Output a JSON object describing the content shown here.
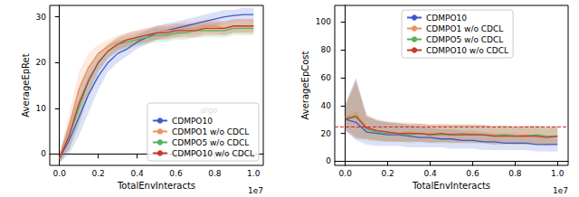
{
  "chart_data": [
    {
      "type": "line",
      "x_label": "TotalEnvInteracts",
      "y_label": "AverageEpRet",
      "annotation": "1e7",
      "x": [
        0,
        0.05,
        0.1,
        0.15,
        0.2,
        0.25,
        0.3,
        0.35,
        0.4,
        0.45,
        0.5,
        0.55,
        0.6,
        0.65,
        0.7,
        0.75,
        0.8,
        0.85,
        0.9,
        0.95,
        1.0
      ],
      "xlim": [
        -0.05,
        1.05
      ],
      "xticks": [
        {
          "value": 0,
          "label": "0.0"
        },
        0.2,
        0.4,
        0.6,
        0.8,
        {
          "value": 1,
          "label": "1.0"
        }
      ],
      "ylim": [
        -2.5,
        32.5
      ],
      "yticks": [
        0,
        10,
        20,
        30
      ],
      "grid": false,
      "legend": "lower right",
      "legend_title": "algo",
      "series": [
        {
          "name": "CDMPO10",
          "color": "#3b5bcc",
          "values": [
            -1,
            3,
            8,
            13,
            17,
            20,
            22,
            23,
            24.5,
            25.5,
            26.5,
            27,
            27.5,
            28,
            28.5,
            29,
            29.5,
            30,
            30.3,
            30.5,
            30.5
          ],
          "lower": [
            -2,
            0,
            4,
            9,
            14,
            18,
            20,
            21.5,
            23,
            24,
            25,
            25.5,
            26,
            26.5,
            27,
            27.5,
            28,
            28.5,
            29,
            29,
            29
          ],
          "upper": [
            0,
            6,
            12,
            17,
            20,
            22,
            24,
            24.5,
            26,
            27,
            28,
            28.5,
            29,
            29.5,
            30,
            30.5,
            31,
            31.5,
            31.5,
            32,
            32
          ]
        },
        {
          "name": "CDMPO1 w/o CDCL",
          "color": "#f28e5b",
          "values": [
            -1,
            6,
            14,
            19,
            22,
            23.5,
            24.5,
            25,
            25.5,
            26,
            26.5,
            27,
            27,
            27.5,
            27.5,
            28,
            28,
            27.5,
            28,
            28,
            28
          ],
          "lower": [
            -2,
            3,
            10,
            16,
            20,
            22,
            23,
            23.5,
            24,
            24.5,
            25,
            25.5,
            25.5,
            26,
            26,
            26.5,
            26.5,
            26,
            26.5,
            26.5,
            26.5
          ],
          "upper": [
            0,
            9,
            18,
            22,
            24,
            25,
            26,
            26.5,
            27,
            27.5,
            28,
            28.5,
            28.5,
            29,
            29,
            29.5,
            29.5,
            29,
            29.5,
            29.5,
            29.5
          ]
        },
        {
          "name": "CDMPO5 w/o CDCL",
          "color": "#55b35a",
          "values": [
            -1,
            4,
            10,
            16,
            20,
            22.5,
            24,
            24.5,
            25,
            25.5,
            26,
            26,
            26.5,
            26.5,
            27,
            27,
            27,
            27,
            27.5,
            27.5,
            27.5
          ],
          "lower": [
            -2,
            1,
            6,
            13,
            18,
            21,
            22.5,
            23,
            23.5,
            24,
            24.5,
            24.5,
            25,
            25,
            25.5,
            25.5,
            25.5,
            25.5,
            26,
            26,
            26
          ],
          "upper": [
            0,
            7,
            14,
            19,
            22,
            24,
            25.5,
            26,
            26.5,
            27,
            27.5,
            27.5,
            28,
            28,
            28.5,
            28.5,
            28.5,
            28.5,
            29,
            29,
            29
          ]
        },
        {
          "name": "CDMPO10 w/o CDCL",
          "color": "#c53a2a",
          "values": [
            -1,
            4,
            11,
            16,
            20,
            22.5,
            24,
            25,
            25.5,
            26,
            26.5,
            26.5,
            27,
            27,
            27,
            27.5,
            27.5,
            27.5,
            28,
            28,
            28
          ],
          "lower": [
            -2,
            1,
            7,
            13,
            18,
            21,
            22.5,
            23.5,
            24,
            24.5,
            25,
            25,
            25.5,
            25.5,
            25.5,
            26,
            26,
            26,
            26.5,
            26.5,
            26.5
          ],
          "upper": [
            0,
            7,
            15,
            19,
            22,
            24,
            25.5,
            26.5,
            27,
            27.5,
            28,
            28,
            28.5,
            28.5,
            28.5,
            29,
            29,
            29,
            29.5,
            29.5,
            29.5
          ]
        }
      ]
    },
    {
      "type": "line",
      "x_label": "TotalEnvInteracts",
      "y_label": "AverageEpCost",
      "annotation": "1e7",
      "x": [
        0,
        0.05,
        0.1,
        0.15,
        0.2,
        0.25,
        0.3,
        0.35,
        0.4,
        0.45,
        0.5,
        0.55,
        0.6,
        0.65,
        0.7,
        0.75,
        0.8,
        0.85,
        0.9,
        0.95,
        1.0
      ],
      "xlim": [
        -0.05,
        1.05
      ],
      "xticks": [
        {
          "value": 0,
          "label": "0.0"
        },
        0.2,
        0.4,
        0.6,
        0.8,
        {
          "value": 1,
          "label": "1.0"
        }
      ],
      "ylim": [
        -3,
        112
      ],
      "yticks": [
        0,
        20,
        40,
        60,
        80,
        100
      ],
      "grid": false,
      "legend": "upper center",
      "hline": {
        "value": 25,
        "color": "#d62728",
        "line_style": "dashed"
      },
      "series": [
        {
          "name": "CDMPO10",
          "color": "#3b5bcc",
          "values": [
            30,
            28,
            21,
            20,
            19,
            19,
            18,
            17,
            17,
            16,
            16,
            15,
            15,
            14,
            14,
            13,
            13,
            13,
            12,
            12,
            12
          ],
          "lower": [
            22,
            15,
            12,
            11,
            11,
            11,
            10,
            10,
            10,
            10,
            9,
            9,
            9,
            8,
            8,
            8,
            8,
            8,
            7,
            7,
            7
          ],
          "upper": [
            40,
            60,
            32,
            30,
            28,
            27,
            26,
            25,
            24,
            23,
            23,
            22,
            22,
            21,
            20,
            20,
            20,
            19,
            19,
            18,
            18
          ]
        },
        {
          "name": "CDMPO1 w/o CDCL",
          "color": "#f28e5b",
          "values": [
            32,
            35,
            24,
            22,
            21,
            20,
            21,
            20,
            20,
            19,
            20,
            19,
            20,
            19,
            19,
            19,
            18,
            19,
            18,
            18,
            18
          ],
          "lower": [
            24,
            18,
            16,
            15,
            14,
            14,
            14,
            14,
            14,
            13,
            14,
            13,
            14,
            13,
            13,
            13,
            12,
            13,
            12,
            12,
            12
          ],
          "upper": [
            42,
            60,
            34,
            30,
            29,
            28,
            28,
            27,
            27,
            26,
            27,
            26,
            27,
            26,
            26,
            26,
            25,
            26,
            25,
            25,
            25
          ]
        },
        {
          "name": "CDMPO5 w/o CDCL",
          "color": "#55b35a",
          "values": [
            31,
            33,
            23,
            21,
            20,
            20,
            19,
            20,
            19,
            19,
            19,
            20,
            19,
            19,
            18,
            19,
            18,
            18,
            19,
            18,
            18
          ],
          "lower": [
            23,
            17,
            15,
            14,
            14,
            14,
            13,
            14,
            13,
            13,
            13,
            14,
            13,
            13,
            12,
            13,
            12,
            12,
            13,
            12,
            12
          ],
          "upper": [
            41,
            58,
            32,
            29,
            28,
            28,
            26,
            27,
            26,
            26,
            26,
            27,
            26,
            26,
            25,
            26,
            25,
            25,
            26,
            25,
            25
          ]
        },
        {
          "name": "CDMPO10 w/o CDCL",
          "color": "#c53a2a",
          "values": [
            30,
            32,
            24,
            22,
            21,
            20,
            20,
            20,
            19,
            20,
            19,
            19,
            19,
            19,
            18,
            18,
            18,
            18,
            18,
            17,
            18
          ],
          "lower": [
            22,
            16,
            16,
            15,
            14,
            14,
            14,
            14,
            13,
            14,
            13,
            13,
            13,
            13,
            12,
            12,
            12,
            12,
            12,
            11,
            12
          ],
          "upper": [
            40,
            57,
            33,
            29,
            28,
            27,
            27,
            27,
            26,
            27,
            26,
            26,
            26,
            26,
            25,
            25,
            25,
            25,
            25,
            24,
            25
          ]
        }
      ]
    }
  ]
}
